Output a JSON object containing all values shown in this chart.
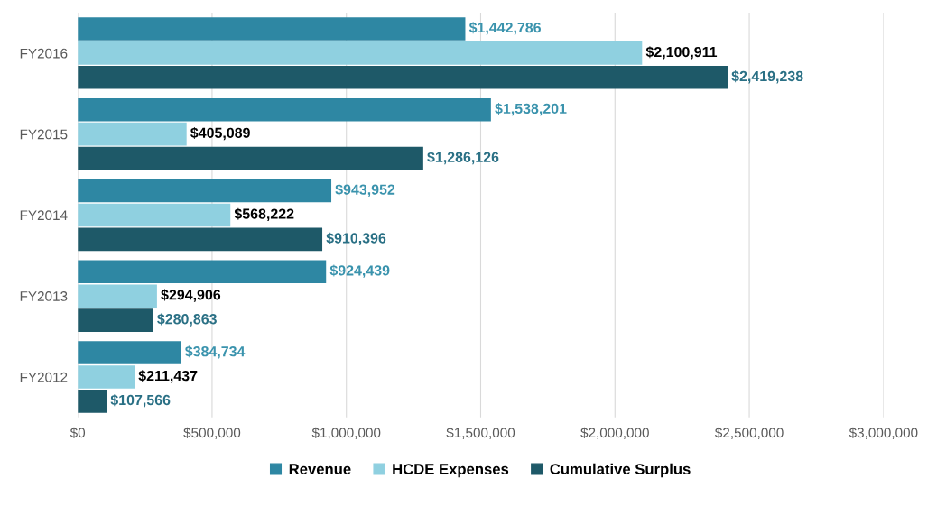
{
  "chart_data": {
    "type": "bar",
    "orientation": "horizontal",
    "categories": [
      "FY2016",
      "FY2015",
      "FY2014",
      "FY2013",
      "FY2012"
    ],
    "series": [
      {
        "name": "Revenue",
        "color": "#2e87a3",
        "values": [
          1442786,
          1538201,
          943952,
          924439,
          384734
        ],
        "value_labels": [
          "$1,442,786",
          "$1,538,201",
          "$943,952",
          "$924,439",
          "$384,734"
        ]
      },
      {
        "name": "HCDE Expenses",
        "color": "#8fd0e0",
        "values": [
          2100911,
          405089,
          568222,
          294906,
          211437
        ],
        "value_labels": [
          "$2,100,911",
          "$405,089",
          "$568,222",
          "$294,906",
          "$211,437"
        ]
      },
      {
        "name": "Cumulative Surplus",
        "color": "#1e5968",
        "values": [
          2419238,
          1286126,
          910396,
          280863,
          107566
        ],
        "value_labels": [
          "$2,419,238",
          "$1,286,126",
          "$910,396",
          "$280,863",
          "$107,566"
        ]
      }
    ],
    "xlim": [
      0,
      3000000
    ],
    "xticks": [
      {
        "value": 0,
        "label": "$0"
      },
      {
        "value": 500000,
        "label": "$500,000"
      },
      {
        "value": 1000000,
        "label": "$1,000,000"
      },
      {
        "value": 1500000,
        "label": "$1,500,000"
      },
      {
        "value": 2000000,
        "label": "$2,000,000"
      },
      {
        "value": 2500000,
        "label": "$2,500,000"
      },
      {
        "value": 3000000,
        "label": "$3,000,000"
      }
    ],
    "grid": "x",
    "legend": "bottom"
  }
}
